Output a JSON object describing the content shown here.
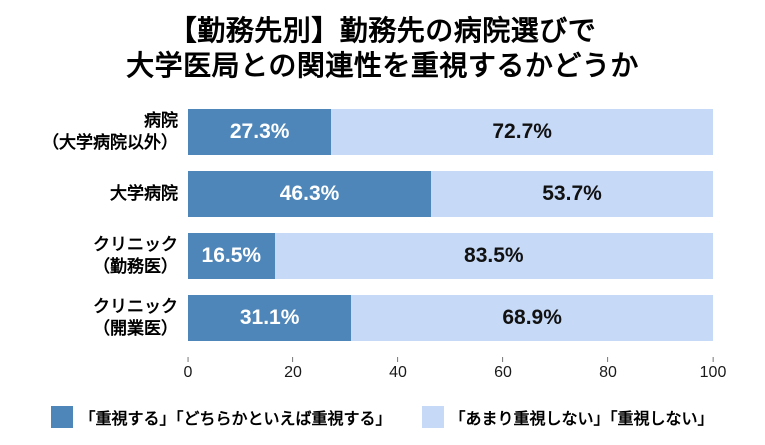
{
  "title": {
    "line1": "【勤務先別】勤務先の病院選びで",
    "line2": "大学医局との関連性を重視するかどうか"
  },
  "colors": {
    "primary_blue": "#4E86B9",
    "secondary_blue": "#C6D9F7",
    "text": "#000000",
    "background": "#ffffff"
  },
  "chart_data": {
    "type": "bar",
    "orientation": "horizontal",
    "stacked": true,
    "title": "【勤務先別】勤務先の病院選びで 大学医局との関連性を重視するかどうか",
    "categories": [
      "病院（大学病院以外）",
      "大学病院",
      "クリニック（勤務医）",
      "クリニック（開業医）"
    ],
    "categories_display": [
      {
        "line1": "病院",
        "line2": "（大学病院以外）"
      },
      {
        "line1": "大学病院",
        "line2": ""
      },
      {
        "line1": "クリニック",
        "line2": "（勤務医）"
      },
      {
        "line1": "クリニック",
        "line2": "（開業医）"
      }
    ],
    "series": [
      {
        "name": "「重視する」「どちらかといえば重視する」",
        "color": "#4E86B9",
        "values": [
          27.3,
          46.3,
          16.5,
          31.1
        ],
        "labels": [
          "27.3%",
          "46.3%",
          "16.5%",
          "31.1%"
        ]
      },
      {
        "name": "「あまり重視しない」「重視しない」",
        "color": "#C6D9F7",
        "values": [
          72.7,
          53.7,
          83.5,
          68.9
        ],
        "labels": [
          "72.7%",
          "53.7%",
          "83.5%",
          "68.9%"
        ]
      }
    ],
    "xlim": [
      0,
      100
    ],
    "x_ticks": [
      0,
      20,
      40,
      60,
      80,
      100
    ],
    "grid": false,
    "legend_position": "bottom"
  }
}
